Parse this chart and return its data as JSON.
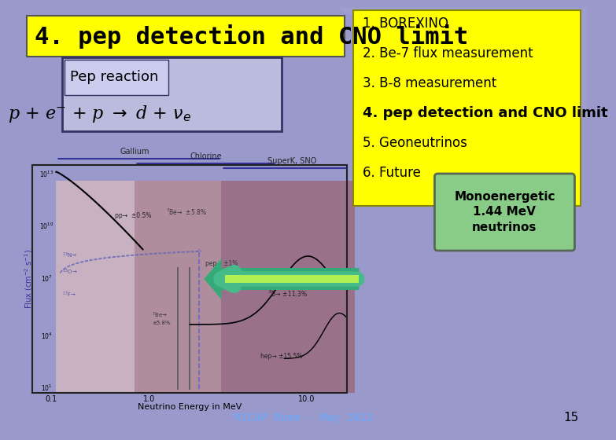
{
  "bg_color": "#9999cc",
  "slide_title": "4. pep detection and CNO limit",
  "slide_title_bg": "#ffff00",
  "slide_title_color": "#000000",
  "slide_title_fontsize": 22,
  "pep_box_title": "Pep reaction",
  "pep_formula": "p + e$^{-}$ + p → d + ν$_{e}$",
  "menu_items": [
    "1. BOREXINO",
    "2. Be-7 flux measurement",
    "3. B-8 measurement",
    "4. pep detection and CNO limit",
    "5. Geoneutrinos",
    "6. Future"
  ],
  "menu_bold_item": 3,
  "menu_bg": "#ffff00",
  "mono_text": "Monoenergetic\n1.44 MeV\nneutrinos",
  "mono_box_bg": "#88cc88",
  "arrow_color": "#44bb88",
  "arrow_highlight": "#ccff44",
  "footer_text": "RICAP Rome - May 2013",
  "footer_color": "#66aaff",
  "page_number": "15",
  "chart_bg_colors": {
    "gallium": "#e8d0d0",
    "chlorine": "#c09090",
    "superk": "#a06070"
  }
}
